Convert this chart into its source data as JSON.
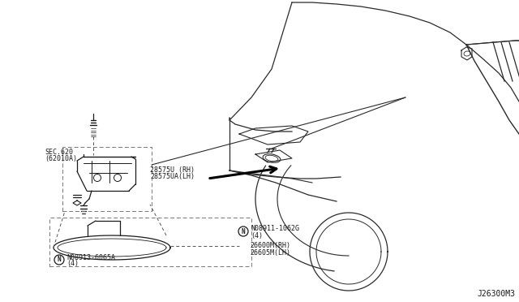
{
  "bg_color": "#ffffff",
  "line_color": "#1a1a1a",
  "diagram_id": "J26300M3",
  "labels": {
    "sec": "SEC.620\n(62010A)",
    "part1_rh": "28575U (RH)",
    "part1_lh": "28575UA(LH)",
    "bolt1_label": "N08913-6065A",
    "bolt1_qty": "(4)",
    "bolt2_label": "N08911-1062G",
    "bolt2_qty": "(4)",
    "part2_rh": "26600M(RH)",
    "part2_lh": "26605M(LH)"
  }
}
